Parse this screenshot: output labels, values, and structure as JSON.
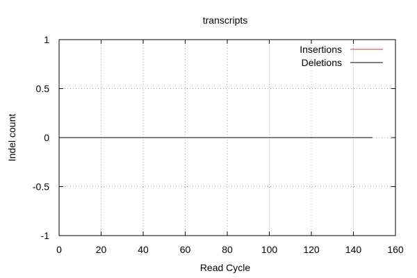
{
  "chart_data": {
    "type": "line",
    "title": "transcripts",
    "xlabel": "Read Cycle",
    "ylabel": "Indel count",
    "xlim": [
      0,
      160
    ],
    "ylim": [
      -1,
      1
    ],
    "x_ticks": [
      0,
      20,
      40,
      60,
      80,
      100,
      120,
      140,
      160
    ],
    "y_ticks": [
      1,
      0.5,
      0,
      -0.5,
      -1
    ],
    "x_tick_labels": [
      "0",
      "20",
      "40",
      "60",
      "80",
      "100",
      "120",
      "140",
      "160"
    ],
    "y_tick_labels": [
      "1",
      "0.5",
      "0",
      "-0.5",
      "-1"
    ],
    "grid": true,
    "legend_position": "top-right",
    "series": [
      {
        "name": "Insertions",
        "color": "#c0392b",
        "x": [
          1,
          149
        ],
        "y": [
          0,
          0
        ]
      },
      {
        "name": "Deletions",
        "color": "#000000",
        "x": [
          1,
          149
        ],
        "y": [
          0,
          0
        ]
      }
    ]
  }
}
